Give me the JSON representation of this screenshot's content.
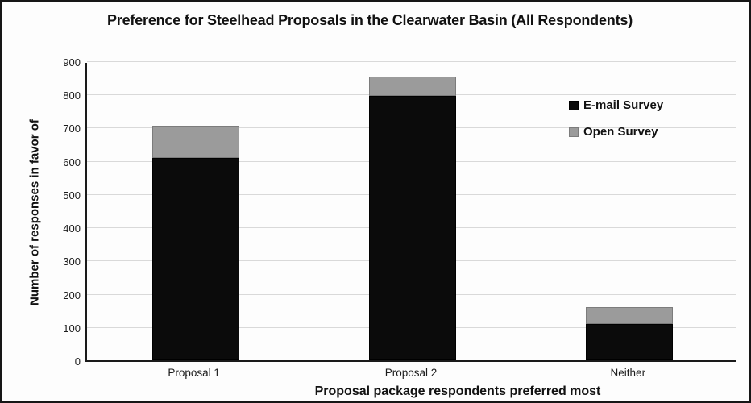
{
  "chart_data": {
    "type": "bar",
    "stacked": true,
    "title": "Preference for Steelhead Proposals in the Clearwater Basin (All Respondents)",
    "xlabel": "Proposal package respondents preferred most",
    "ylabel": "Number of responses in favor of",
    "categories": [
      "Proposal 1",
      "Proposal 2",
      "Neither"
    ],
    "series": [
      {
        "name": "E-mail Survey",
        "color": "#0b0b0b",
        "border_color": "#000000",
        "values": [
          610,
          795,
          110
        ]
      },
      {
        "name": "Open Survey",
        "color": "#9b9b9b",
        "border_color": "#7c7c7c",
        "values": [
          95,
          60,
          50
        ]
      }
    ],
    "ylim": [
      0,
      900
    ],
    "yticks": [
      0,
      100,
      200,
      300,
      400,
      500,
      600,
      700,
      800,
      900
    ],
    "grid": true,
    "gridline_color": "#d9d9d9",
    "axis_color": "#1a1a1a",
    "legend_position": "inside-right"
  }
}
